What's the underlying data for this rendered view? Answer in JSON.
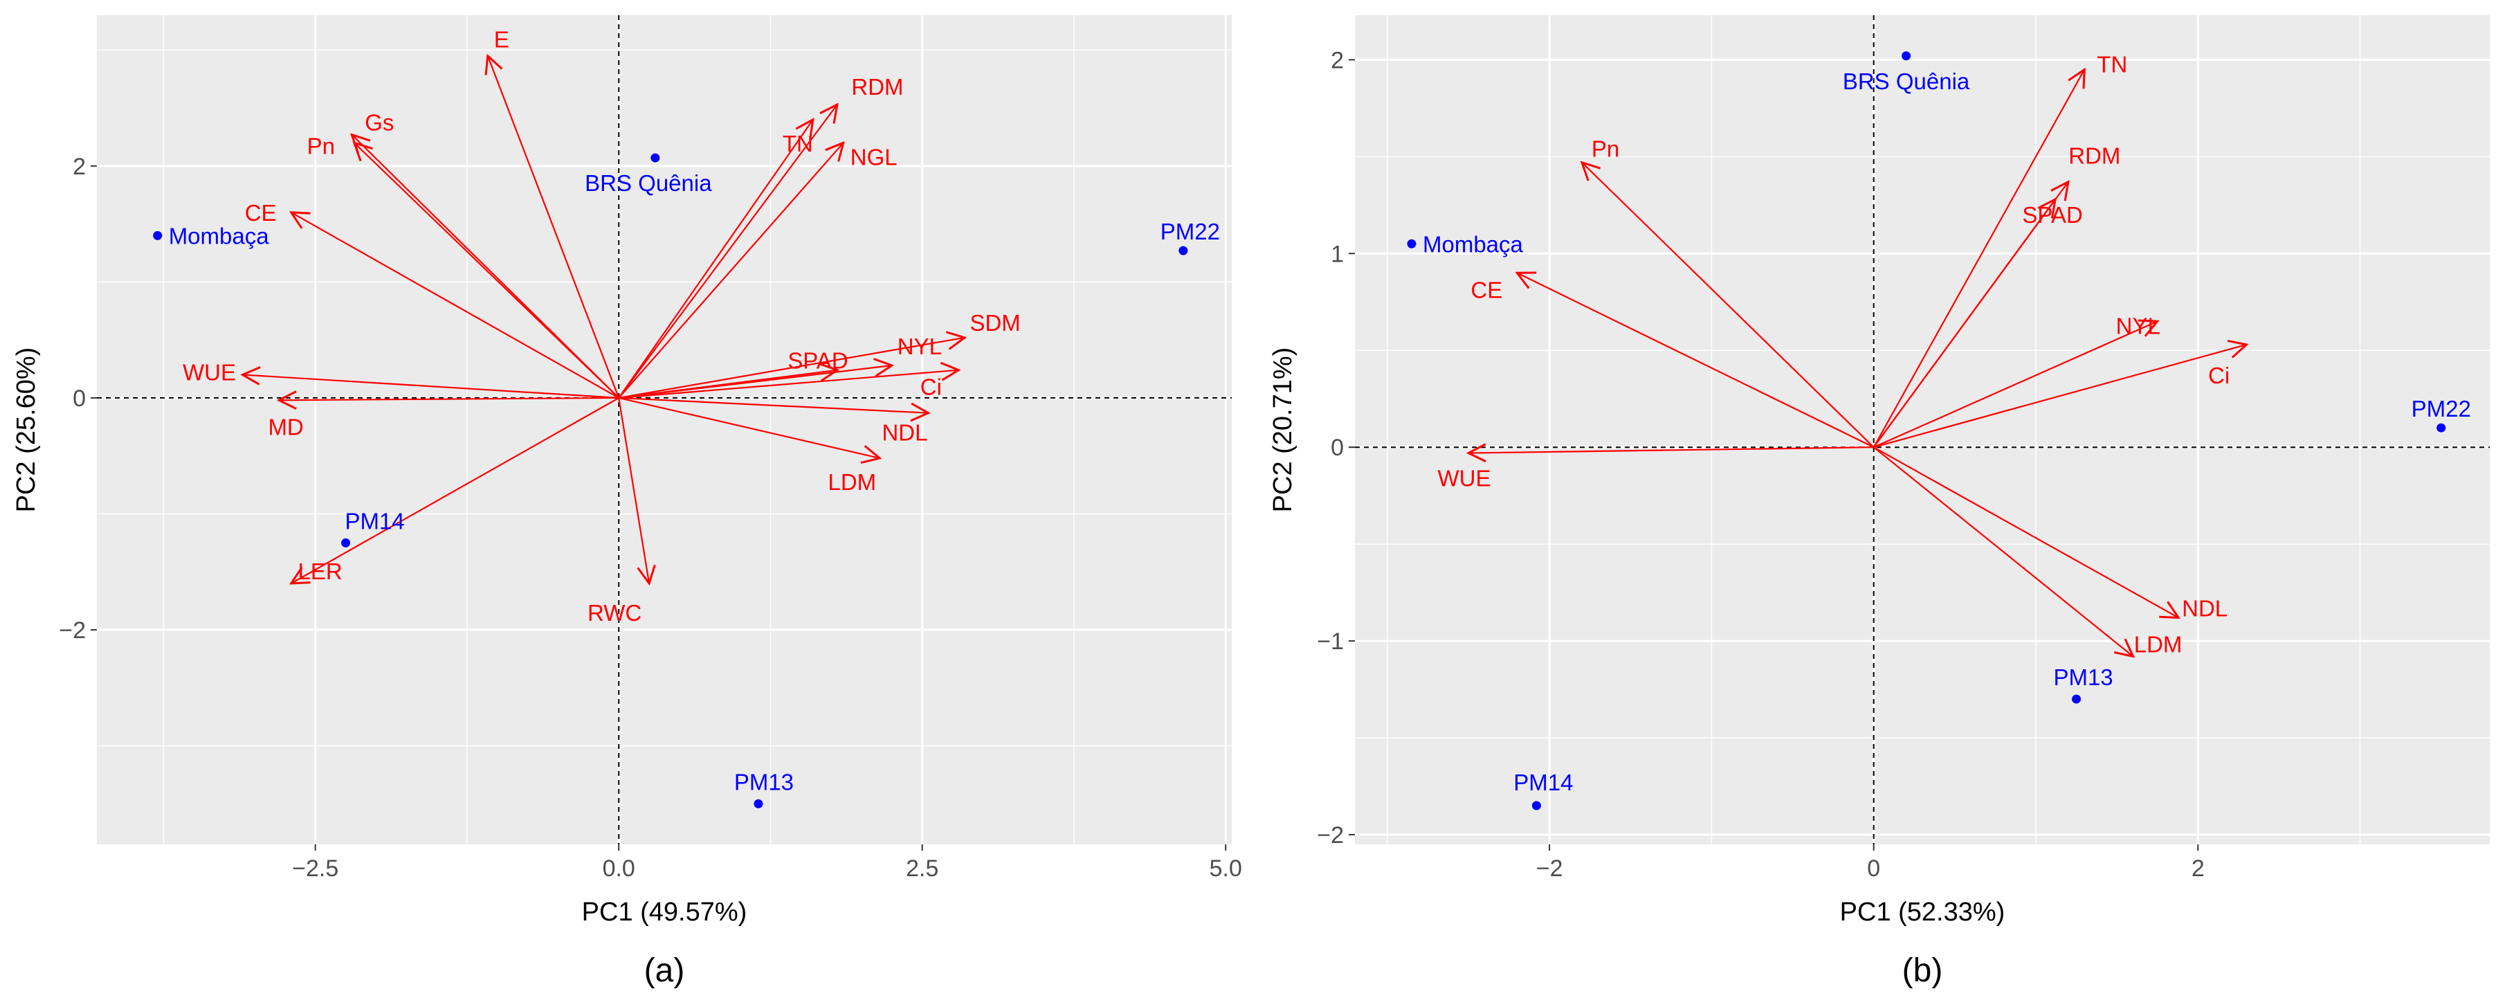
{
  "chart_data": [
    {
      "type": "scatter",
      "subtype": "pca-biplot",
      "caption": "(a)",
      "xlabel": "PC1 (49.57%)",
      "ylabel": "PC2 (25.60%)",
      "xlim": [
        -4.3,
        5.05
      ],
      "ylim": [
        -3.85,
        3.3
      ],
      "xticks": [
        -2.5,
        0.0,
        2.5,
        5.0
      ],
      "xtick_labels": [
        "−2.5",
        "0.0",
        "2.5",
        "5.0"
      ],
      "yticks": [
        -2,
        0,
        2
      ],
      "ytick_labels": [
        "−2",
        "0",
        "2"
      ],
      "grid": true,
      "reference_lines": {
        "x": 0,
        "y": 0,
        "style": "dashed"
      },
      "colors": {
        "panel": "#ebebeb",
        "grid": "#ffffff",
        "vector": "#ff0000",
        "point": "#0000ff"
      },
      "points": [
        {
          "name": "Mombaça",
          "x": -3.8,
          "y": 1.4
        },
        {
          "name": "BRS Quênia",
          "x": 0.3,
          "y": 2.07
        },
        {
          "name": "PM22",
          "x": 4.65,
          "y": 1.27
        },
        {
          "name": "PM14",
          "x": -2.25,
          "y": -1.25
        },
        {
          "name": "PM13",
          "x": 1.15,
          "y": -3.5
        }
      ],
      "vectors": [
        {
          "name": "E",
          "x": -1.08,
          "y": 2.95
        },
        {
          "name": "Gs",
          "x": -2.2,
          "y": 2.27
        },
        {
          "name": "Pn",
          "x": -2.18,
          "y": 2.2
        },
        {
          "name": "CE",
          "x": -2.7,
          "y": 1.6
        },
        {
          "name": "WUE",
          "x": -3.1,
          "y": 0.2
        },
        {
          "name": "MD",
          "x": -2.8,
          "y": -0.02
        },
        {
          "name": "LER",
          "x": -2.7,
          "y": -1.6
        },
        {
          "name": "RWC",
          "x": 0.25,
          "y": -1.6
        },
        {
          "name": "RDM",
          "x": 1.8,
          "y": 2.53
        },
        {
          "name": "TN",
          "x": 1.6,
          "y": 2.4
        },
        {
          "name": "NGL",
          "x": 1.85,
          "y": 2.2
        },
        {
          "name": "SDM",
          "x": 2.85,
          "y": 0.52
        },
        {
          "name": "NYL",
          "x": 2.25,
          "y": 0.28
        },
        {
          "name": "SPAD",
          "x": 1.8,
          "y": 0.24
        },
        {
          "name": "Ci",
          "x": 2.8,
          "y": 0.24
        },
        {
          "name": "NDL",
          "x": 2.55,
          "y": -0.13
        },
        {
          "name": "LDM",
          "x": 2.15,
          "y": -0.52
        }
      ]
    },
    {
      "type": "scatter",
      "subtype": "pca-biplot",
      "caption": "(b)",
      "xlabel": "PC1 (52.33%)",
      "ylabel": "PC2 (20.71%)",
      "xlim": [
        -3.2,
        3.8
      ],
      "ylim": [
        -2.05,
        2.23
      ],
      "xticks": [
        -2,
        0,
        2
      ],
      "xtick_labels": [
        "−2",
        "0",
        "2"
      ],
      "yticks": [
        -2,
        -1,
        0,
        1,
        2
      ],
      "ytick_labels": [
        "−2",
        "−1",
        "0",
        "1",
        "2"
      ],
      "grid": true,
      "reference_lines": {
        "x": 0,
        "y": 0,
        "style": "dashed"
      },
      "colors": {
        "panel": "#ebebeb",
        "grid": "#ffffff",
        "vector": "#ff0000",
        "point": "#0000ff"
      },
      "points": [
        {
          "name": "BRS Quênia",
          "x": 0.2,
          "y": 2.02
        },
        {
          "name": "Mombaça",
          "x": -2.85,
          "y": 1.05
        },
        {
          "name": "PM22",
          "x": 3.5,
          "y": 0.1
        },
        {
          "name": "PM13",
          "x": 1.25,
          "y": -1.3
        },
        {
          "name": "PM14",
          "x": -2.08,
          "y": -1.85
        }
      ],
      "vectors": [
        {
          "name": "TN",
          "x": 1.3,
          "y": 1.95
        },
        {
          "name": "RDM",
          "x": 1.2,
          "y": 1.37
        },
        {
          "name": "SPAD",
          "x": 1.12,
          "y": 1.28
        },
        {
          "name": "Pn",
          "x": -1.8,
          "y": 1.47
        },
        {
          "name": "CE",
          "x": -2.2,
          "y": 0.9
        },
        {
          "name": "WUE",
          "x": -2.5,
          "y": -0.03
        },
        {
          "name": "NYL",
          "x": 1.75,
          "y": 0.65
        },
        {
          "name": "Ci",
          "x": 2.3,
          "y": 0.53
        },
        {
          "name": "NDL",
          "x": 1.88,
          "y": -0.88
        },
        {
          "name": "LDM",
          "x": 1.6,
          "y": -1.08
        }
      ]
    }
  ]
}
